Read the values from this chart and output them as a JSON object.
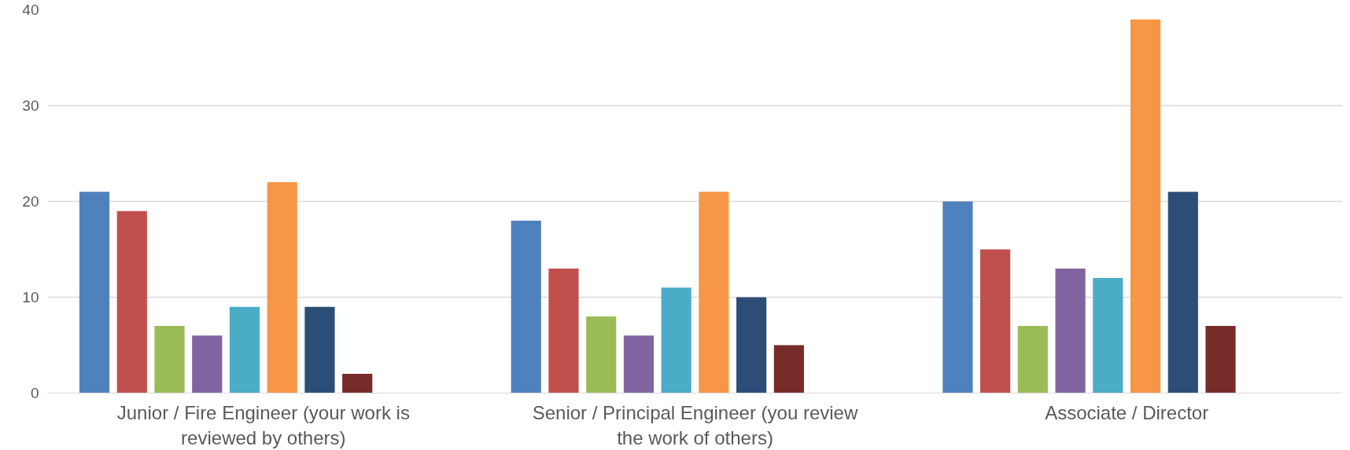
{
  "chart_data": {
    "type": "bar",
    "categories": [
      "Junior / Fire Engineer (your work is reviewed by others)",
      "Senior / Principal Engineer (you review the work of others)",
      "Associate / Director"
    ],
    "series": [
      {
        "color": "#4f81bd",
        "values": [
          21,
          18,
          20
        ]
      },
      {
        "color": "#c0504d",
        "values": [
          19,
          13,
          15
        ]
      },
      {
        "color": "#9bbb59",
        "values": [
          7,
          8,
          7
        ]
      },
      {
        "color": "#8064a2",
        "values": [
          6,
          6,
          13
        ]
      },
      {
        "color": "#4bacc6",
        "values": [
          9,
          11,
          12
        ]
      },
      {
        "color": "#f79646",
        "values": [
          22,
          21,
          39
        ]
      },
      {
        "color": "#2c4d75",
        "values": [
          9,
          10,
          21
        ]
      },
      {
        "color": "#772c2a",
        "values": [
          2,
          5,
          7
        ]
      }
    ],
    "ylim": [
      0,
      40
    ],
    "yticks": [
      0,
      10,
      20,
      30,
      40
    ],
    "grid": "y"
  }
}
